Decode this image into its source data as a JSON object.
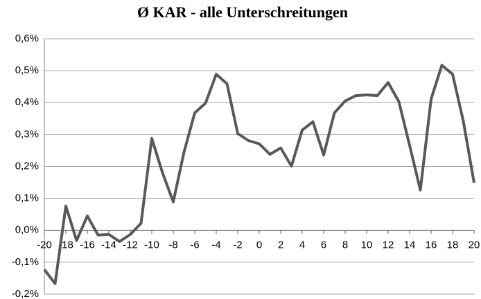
{
  "chart_data": {
    "type": "line",
    "title": "Ø KAR - alle Unterschreitungen",
    "x": [
      -20,
      -19,
      -18,
      -17,
      -16,
      -15,
      -14,
      -13,
      -12,
      -11,
      -10,
      -9,
      -8,
      -7,
      -6,
      -5,
      -4,
      -3,
      -2,
      -1,
      0,
      1,
      2,
      3,
      4,
      5,
      6,
      7,
      8,
      9,
      10,
      11,
      12,
      13,
      14,
      15,
      16,
      17,
      18,
      19,
      20
    ],
    "series": [
      {
        "name": "Ø KAR",
        "color": "#595959",
        "values": [
          -0.123,
          -0.167,
          0.076,
          -0.032,
          0.045,
          -0.015,
          -0.013,
          -0.035,
          -0.013,
          0.022,
          0.288,
          0.18,
          0.089,
          0.245,
          0.368,
          0.398,
          0.489,
          0.459,
          0.303,
          0.281,
          0.271,
          0.238,
          0.258,
          0.201,
          0.314,
          0.34,
          0.236,
          0.368,
          0.405,
          0.422,
          0.424,
          0.422,
          0.463,
          0.403,
          0.266,
          0.126,
          0.411,
          0.517,
          0.489,
          0.342,
          0.149
        ]
      }
    ],
    "xlim": [
      -20,
      20
    ],
    "xticks": [
      -20,
      -18,
      -16,
      -14,
      -12,
      -10,
      -8,
      -6,
      -4,
      -2,
      0,
      2,
      4,
      6,
      8,
      10,
      12,
      14,
      16,
      18,
      20
    ],
    "ylim": [
      -0.2,
      0.6
    ],
    "yticks": [
      {
        "value": -0.2,
        "label": "-0,2%"
      },
      {
        "value": -0.1,
        "label": "-0,1%"
      },
      {
        "value": 0,
        "label": "0,0%"
      },
      {
        "value": 0.1,
        "label": "0,1%"
      },
      {
        "value": 0.2,
        "label": "0,2%"
      },
      {
        "value": 0.3,
        "label": "0,3%"
      },
      {
        "value": 0.4,
        "label": "0,4%"
      },
      {
        "value": 0.5,
        "label": "0,5%"
      },
      {
        "value": 0.6,
        "label": "0,6%"
      }
    ],
    "grid": true
  }
}
